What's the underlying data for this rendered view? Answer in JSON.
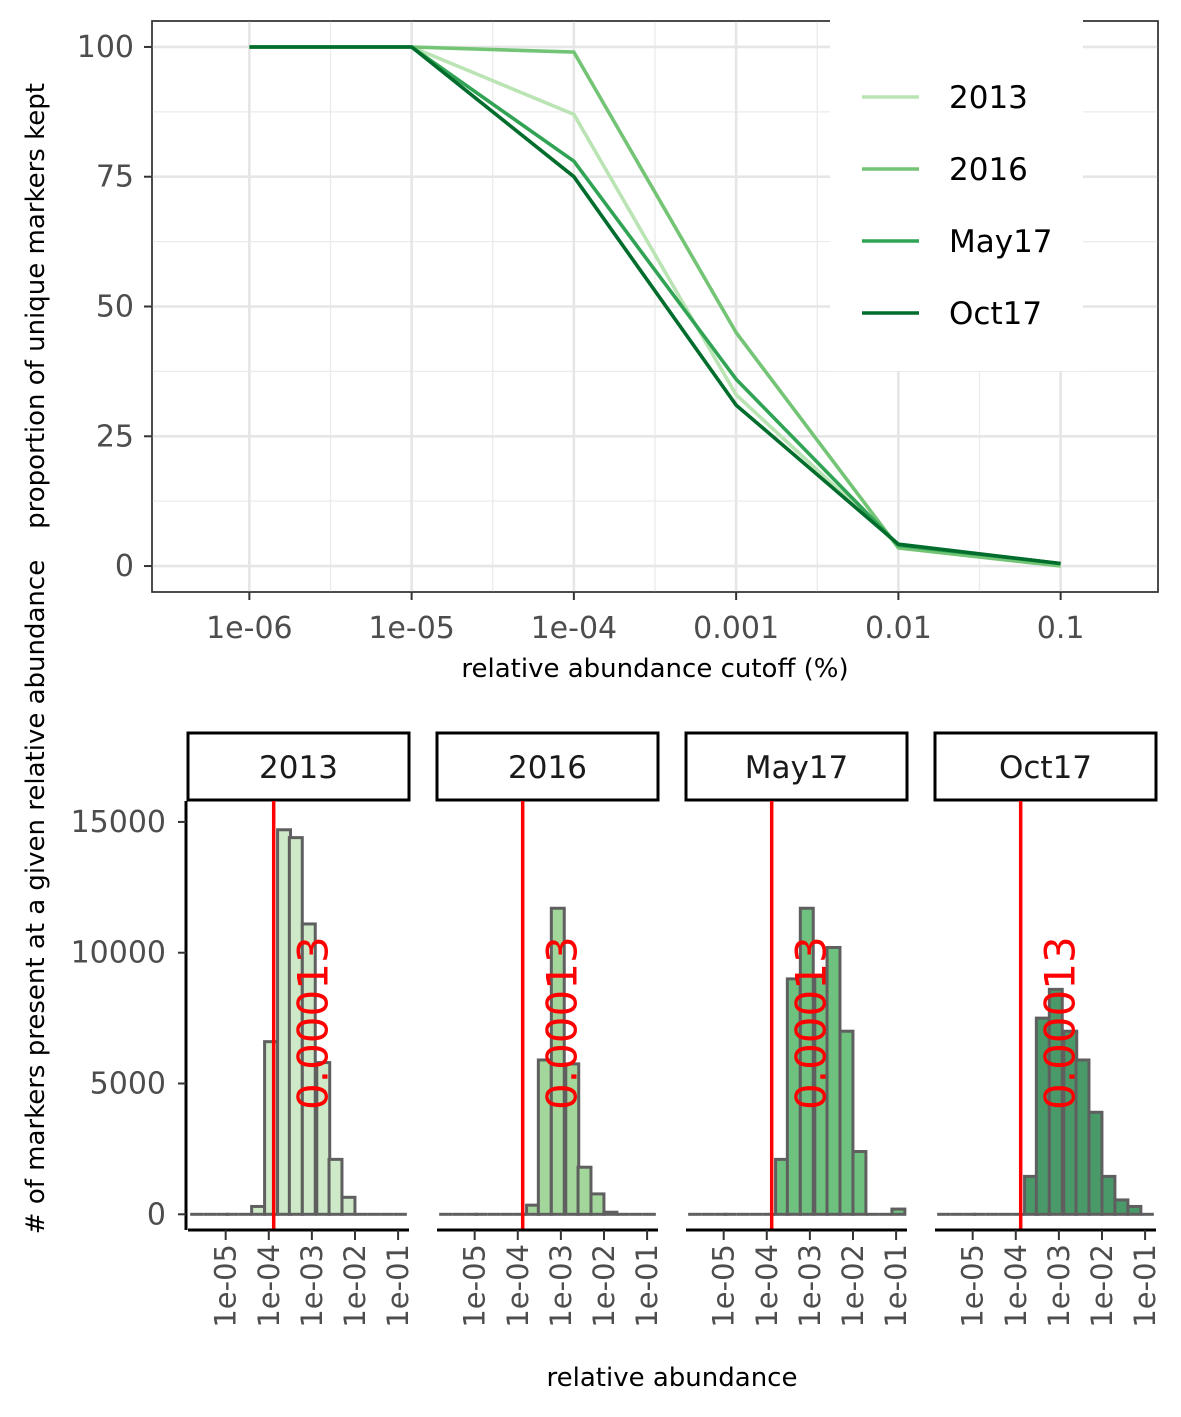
{
  "chart_data": [
    {
      "type": "line",
      "title": "",
      "xlabel": "relative abundance cutoff (%)",
      "ylabel": "proportion of unique markers kept",
      "x_scale": "log",
      "x_ticks": [
        "1e-06",
        "1e-05",
        "1e-04",
        "0.001",
        "0.01",
        "0.1"
      ],
      "x": [
        1e-06,
        1e-05,
        0.0001,
        0.001,
        0.01,
        0.1
      ],
      "y_ticks": [
        "0",
        "25",
        "50",
        "75",
        "100"
      ],
      "ylim": [
        -5,
        105
      ],
      "grid": true,
      "legend_position": "top-right",
      "series": [
        {
          "name": "2013",
          "color": "#bae4b3",
          "values": [
            100,
            100,
            87,
            33,
            4,
            0.3
          ]
        },
        {
          "name": "2016",
          "color": "#74c476",
          "values": [
            100,
            100,
            99,
            45,
            3.5,
            0
          ]
        },
        {
          "name": "May17",
          "color": "#31a354",
          "values": [
            100,
            100,
            78,
            36,
            4,
            0.5
          ]
        },
        {
          "name": "Oct17",
          "color": "#006d2c",
          "values": [
            100,
            100,
            75,
            31,
            4.2,
            0.5
          ]
        }
      ]
    },
    {
      "type": "histogram",
      "title": "",
      "xlabel": "relative abundance",
      "ylabel": "# of markers present at a given relative abundance",
      "x_scale": "log",
      "x_ticks": [
        "1e-05",
        "1e-04",
        "1e-03",
        "1e-02",
        "1e-01"
      ],
      "y_ticks": [
        "0",
        "5000",
        "10000",
        "15000"
      ],
      "ylim": [
        -600,
        15800
      ],
      "bin_left_edges": [
        1.5e-06,
        3e-06,
        6e-06,
        1e-05,
        2e-05,
        4e-05,
        8e-05,
        0.00016,
        0.0003,
        0.0006,
        0.0013,
        0.0025,
        0.005,
        0.01,
        0.02,
        0.04,
        0.08
      ],
      "bin_log_width": 0.3,
      "cutoff_label": "0.00013",
      "cutoff_value": 0.00013,
      "cutoff_color": "#ff0000",
      "bar_edge_color": "#5f5f5f",
      "panels": [
        {
          "name": "2013",
          "fill": "#cde9c7",
          "counts": [
            0,
            0,
            0,
            0,
            0,
            300,
            6600,
            14700,
            14400,
            11100,
            5800,
            2100,
            650,
            0,
            0,
            0,
            0
          ]
        },
        {
          "name": "2016",
          "fill": "#a2d69a",
          "counts": [
            0,
            0,
            0,
            0,
            0,
            0,
            0,
            350,
            5900,
            11700,
            5750,
            1800,
            780,
            80,
            0,
            0,
            0
          ]
        },
        {
          "name": "May17",
          "fill": "#6fc180",
          "counts": [
            0,
            0,
            0,
            0,
            0,
            0,
            0,
            2100,
            9000,
            11700,
            9100,
            10200,
            7000,
            2400,
            0,
            0,
            200
          ]
        },
        {
          "name": "Oct17",
          "fill": "#4a9969",
          "counts": [
            0,
            0,
            0,
            0,
            0,
            0,
            0,
            1450,
            7500,
            8600,
            7000,
            5900,
            3900,
            1450,
            550,
            300,
            0
          ]
        }
      ]
    }
  ]
}
